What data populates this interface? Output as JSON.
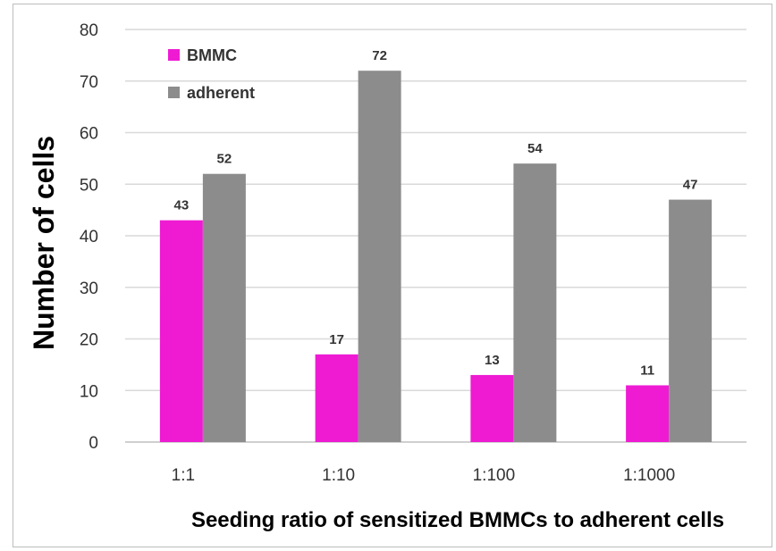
{
  "chart_data": {
    "type": "bar",
    "title": "",
    "xlabel": "Seeding ratio of sensitized BMMCs to adherent cells",
    "ylabel": "Number of cells",
    "categories": [
      "1:1",
      "1:10",
      "1:100",
      "1:1000"
    ],
    "series": [
      {
        "name": "BMMC",
        "values": [
          43,
          17,
          13,
          11
        ],
        "color": "#ee1bd3"
      },
      {
        "name": "adherent",
        "values": [
          52,
          72,
          54,
          47
        ],
        "color": "#8c8c8c"
      }
    ],
    "ylim": [
      0,
      80
    ],
    "yticks": [
      0,
      10,
      20,
      30,
      40,
      50,
      60,
      70,
      80
    ],
    "grid": "horizontal",
    "legend": "top-left",
    "data_labels": true
  }
}
